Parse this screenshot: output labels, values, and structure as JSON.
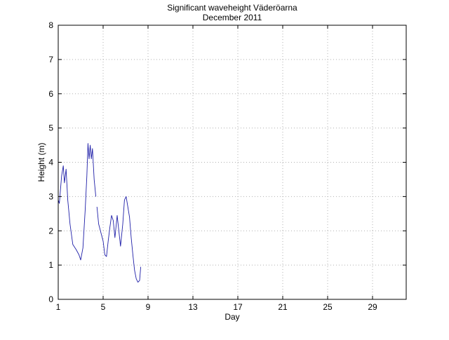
{
  "chart_data": {
    "type": "line",
    "title": "Significant waveheight Väderöarna",
    "subtitle": "December 2011",
    "xlabel": "Day",
    "ylabel": "Height (m)",
    "xlim": [
      1,
      32
    ],
    "ylim": [
      0,
      8
    ],
    "xticks": [
      1,
      5,
      9,
      13,
      17,
      21,
      25,
      29
    ],
    "yticks": [
      0,
      1,
      2,
      3,
      4,
      5,
      6,
      7,
      8
    ],
    "grid": true,
    "line_color": "#1f1fa8",
    "series": [
      {
        "segments": [
          [
            [
              1.0,
              2.9
            ],
            [
              1.1,
              2.8
            ],
            [
              1.3,
              3.6
            ],
            [
              1.45,
              3.9
            ],
            [
              1.55,
              3.4
            ],
            [
              1.7,
              3.8
            ],
            [
              1.85,
              2.9
            ],
            [
              2.05,
              2.2
            ],
            [
              2.3,
              1.6
            ],
            [
              2.6,
              1.45
            ],
            [
              2.85,
              1.3
            ],
            [
              3.0,
              1.15
            ],
            [
              3.2,
              1.5
            ],
            [
              3.4,
              2.6
            ],
            [
              3.55,
              3.6
            ],
            [
              3.65,
              4.55
            ],
            [
              3.75,
              4.1
            ],
            [
              3.85,
              4.5
            ],
            [
              3.95,
              4.1
            ],
            [
              4.05,
              4.4
            ],
            [
              4.2,
              3.5
            ],
            [
              4.35,
              3.0
            ]
          ],
          [
            [
              4.45,
              2.7
            ],
            [
              4.6,
              2.2
            ],
            [
              4.8,
              1.95
            ],
            [
              5.0,
              1.7
            ],
            [
              5.15,
              1.3
            ],
            [
              5.3,
              1.25
            ],
            [
              5.45,
              1.7
            ],
            [
              5.6,
              2.1
            ],
            [
              5.75,
              2.45
            ],
            [
              5.9,
              2.3
            ],
            [
              6.05,
              1.8
            ],
            [
              6.25,
              2.45
            ],
            [
              6.4,
              2.0
            ],
            [
              6.55,
              1.55
            ],
            [
              6.75,
              2.2
            ],
            [
              6.9,
              2.9
            ],
            [
              7.05,
              3.0
            ],
            [
              7.2,
              2.7
            ],
            [
              7.35,
              2.4
            ],
            [
              7.5,
              1.8
            ],
            [
              7.65,
              1.3
            ],
            [
              7.8,
              0.85
            ],
            [
              7.95,
              0.6
            ],
            [
              8.1,
              0.5
            ],
            [
              8.25,
              0.55
            ],
            [
              8.35,
              0.95
            ]
          ]
        ]
      }
    ]
  }
}
